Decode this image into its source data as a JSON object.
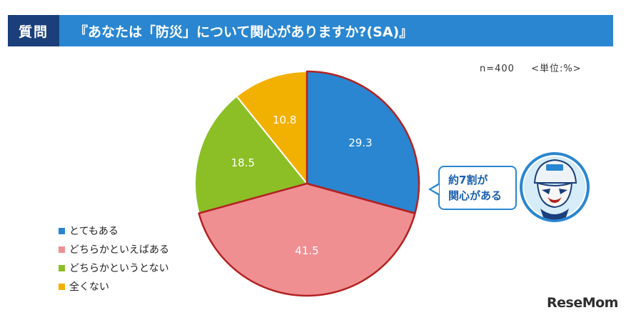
{
  "header": {
    "label": "質問",
    "question": "『あなたは「防災」について関心がありますか?(SA)』"
  },
  "meta": {
    "sample": "n=400",
    "unit": "<単位:%>"
  },
  "callout": {
    "line1": "約7割が",
    "line2": "関心がある"
  },
  "logo": "ReseMom",
  "colors": {
    "header_bg": "#2a86d0",
    "header_label_bg": "#1a3f7a",
    "highlight_border": "#b22222"
  },
  "chart_data": {
    "type": "pie",
    "unit": "%",
    "n": 400,
    "slices": [
      {
        "label": "とてもある",
        "value": 29.3,
        "color": "#2a86d0"
      },
      {
        "label": "どちらかといえばある",
        "value": 41.5,
        "color": "#ef8f92"
      },
      {
        "label": "どちらかというとない",
        "value": 18.5,
        "color": "#8cbf26"
      },
      {
        "label": "全くない",
        "value": 10.8,
        "color": "#f2b100"
      }
    ],
    "start_angle": "12 o'clock",
    "direction": "clockwise",
    "highlighted": [
      "とてもある",
      "どちらかといえばある"
    ],
    "legend_position": "bottom-left"
  }
}
